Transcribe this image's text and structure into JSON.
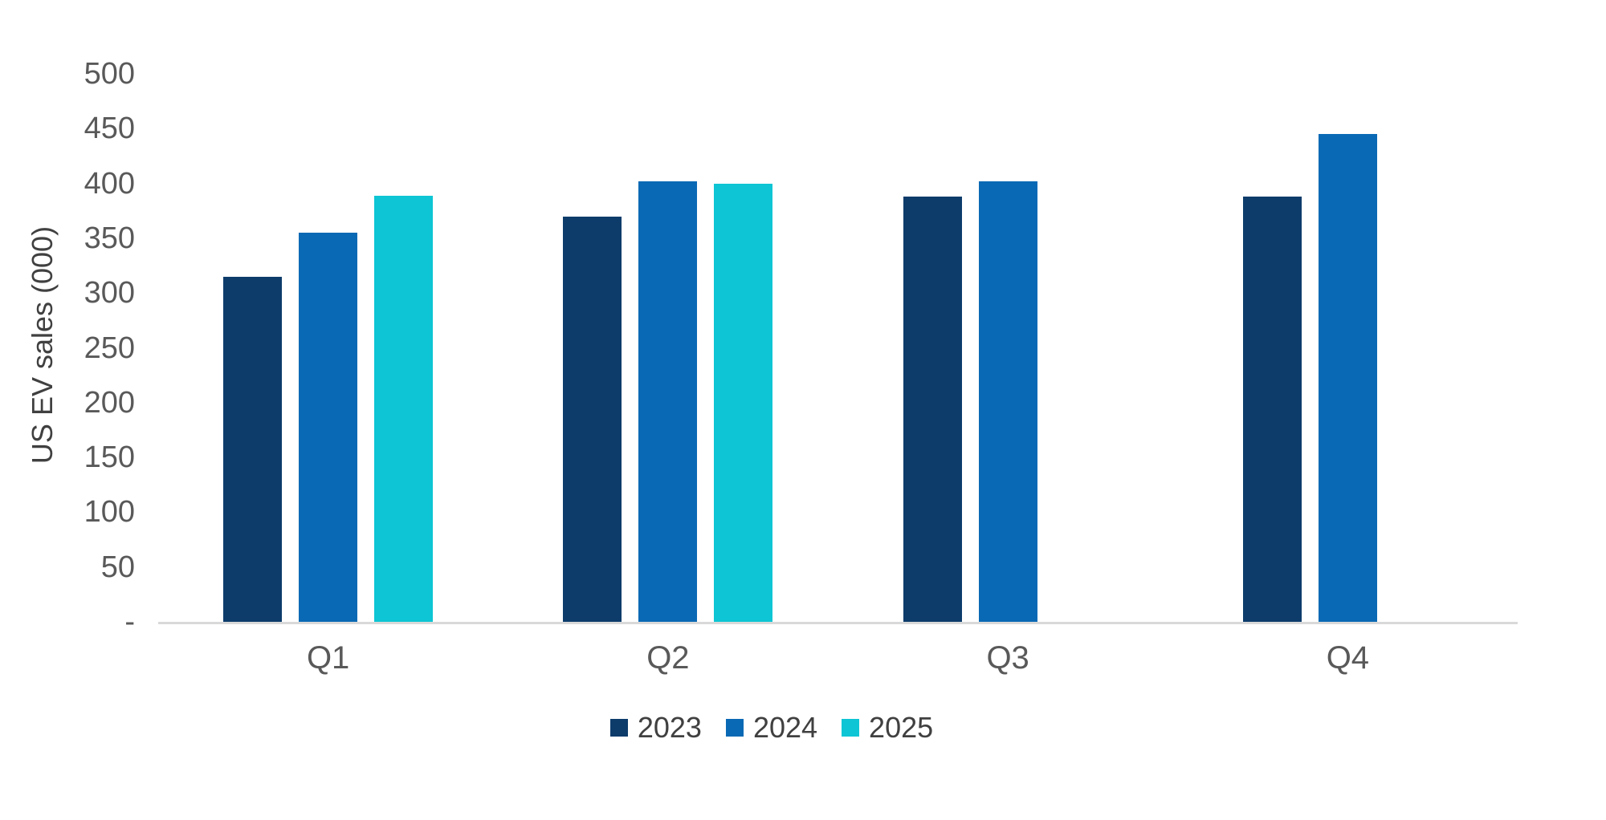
{
  "chart_data": {
    "type": "bar",
    "title": "",
    "xlabel": "",
    "ylabel": "US EV sales (000)",
    "categories": [
      "Q1",
      "Q2",
      "Q3",
      "Q4"
    ],
    "series": [
      {
        "name": "2023",
        "color": "#0d3c6b",
        "values": [
          315,
          370,
          388,
          388
        ]
      },
      {
        "name": "2024",
        "color": "#0a69b5",
        "values": [
          355,
          402,
          402,
          445
        ]
      },
      {
        "name": "2025",
        "color": "#0dc5d4",
        "values": [
          389,
          400,
          null,
          null
        ]
      }
    ],
    "ylim": [
      0,
      500
    ],
    "ytick_step": 50,
    "ytick_labels": [
      "-",
      "50",
      "100",
      "150",
      "200",
      "250",
      "300",
      "350",
      "400",
      "450",
      "500"
    ],
    "grid": false,
    "legend_position": "bottom",
    "colors": {
      "background": "#ffffff",
      "axis_line": "#d9d9d9",
      "tick_text": "#595959",
      "axis_title_text": "#404040",
      "legend_text": "#404040"
    }
  }
}
